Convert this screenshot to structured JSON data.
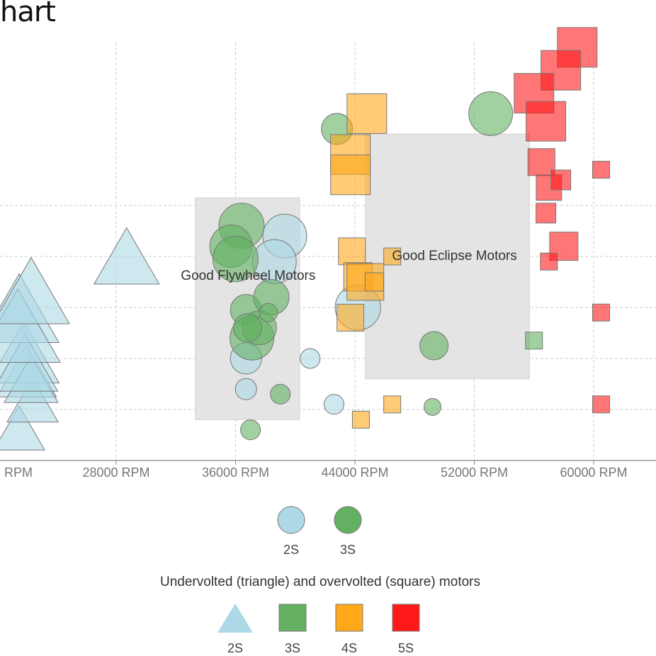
{
  "page": {
    "title": "hart"
  },
  "colors": {
    "2S": "#add8e6",
    "3S": "#63b063",
    "4S": "#ffa91a",
    "5S": "#ff1a1a",
    "zone": "#e4e4e4",
    "stroke": "#777777"
  },
  "chart_data": {
    "type": "scatter",
    "title": "",
    "xlabel": "",
    "ylabel": "",
    "x_unit": "RPM",
    "xlim": [
      20500,
      64000
    ],
    "ylim": [
      0,
      9
    ],
    "x_ticks": [
      "RPM",
      "28000 RPM",
      "36000 RPM",
      "44000 RPM",
      "52000 RPM",
      "60000 RPM"
    ],
    "x_tick_values": [
      20000,
      28000,
      36000,
      44000,
      52000,
      60000
    ],
    "y_gridlines": [
      1,
      2,
      3,
      4,
      5
    ],
    "grid": true,
    "zones": [
      {
        "label": "Good Flywheel Motors",
        "x0": 33300,
        "x1": 40300,
        "y0": 0.8,
        "y1": 5.15
      },
      {
        "label": "Good Eclipse Motors",
        "x0": 44700,
        "x1": 55700,
        "y0": 1.6,
        "y1": 6.4
      }
    ],
    "legend_cells": {
      "items": [
        {
          "label": "2S",
          "color": "2S"
        },
        {
          "label": "3S",
          "color": "3S"
        }
      ]
    },
    "legend_shapes": {
      "title": "Undervolted (triangle) and overvolted (square) motors",
      "items": [
        {
          "label": "2S",
          "shape": "triangle",
          "color": "2S"
        },
        {
          "label": "3S",
          "shape": "square",
          "color": "3S"
        },
        {
          "label": "4S",
          "shape": "square",
          "color": "4S"
        },
        {
          "label": "5S",
          "shape": "square",
          "color": "5S"
        }
      ]
    },
    "series": [
      {
        "shape": "triangle",
        "color": "2S",
        "points": [
          [
            21500,
            0.55,
            36
          ],
          [
            22400,
            1.1,
            36
          ],
          [
            22000,
            1.65,
            42
          ],
          [
            21800,
            2.0,
            50
          ],
          [
            22300,
            1.5,
            38
          ],
          [
            21900,
            1.8,
            46
          ],
          [
            21500,
            2.85,
            56
          ],
          [
            21400,
            2.5,
            60
          ],
          [
            22300,
            3.2,
            54
          ],
          [
            28700,
            3.9,
            46
          ]
        ]
      },
      {
        "shape": "circle",
        "color": "2S",
        "points": [
          [
            39300,
            4.4,
            31
          ],
          [
            38600,
            3.9,
            31
          ],
          [
            36700,
            2.0,
            22
          ],
          [
            36700,
            1.4,
            15
          ],
          [
            41000,
            2.0,
            14
          ],
          [
            44200,
            3.0,
            32
          ],
          [
            42600,
            1.1,
            14
          ]
        ]
      },
      {
        "shape": "circle",
        "color": "3S",
        "points": [
          [
            36400,
            4.6,
            32
          ],
          [
            35700,
            4.2,
            30
          ],
          [
            36000,
            3.95,
            32
          ],
          [
            36700,
            2.95,
            22
          ],
          [
            37100,
            2.4,
            31
          ],
          [
            37600,
            2.6,
            24
          ],
          [
            38400,
            3.2,
            25
          ],
          [
            38200,
            2.9,
            13
          ],
          [
            36800,
            2.6,
            20
          ],
          [
            39000,
            1.3,
            14
          ],
          [
            37000,
            0.6,
            14
          ],
          [
            42800,
            6.5,
            22
          ],
          [
            53100,
            6.8,
            31
          ],
          [
            49300,
            2.25,
            20
          ],
          [
            49200,
            1.05,
            12
          ]
        ]
      },
      {
        "shape": "square",
        "color": "3S",
        "points": [
          [
            56000,
            2.35,
            12
          ]
        ]
      },
      {
        "shape": "square",
        "color": "4S",
        "points": [
          [
            44800,
            6.8,
            28
          ],
          [
            43700,
            6.0,
            28
          ],
          [
            43700,
            5.6,
            28
          ],
          [
            43800,
            4.1,
            19
          ],
          [
            44200,
            3.6,
            20
          ],
          [
            44700,
            3.5,
            26
          ],
          [
            45300,
            3.5,
            13
          ],
          [
            46500,
            4.0,
            12
          ],
          [
            43700,
            2.8,
            19
          ],
          [
            46500,
            1.1,
            12
          ],
          [
            44400,
            0.8,
            12
          ]
        ]
      },
      {
        "shape": "square",
        "color": "5S",
        "points": [
          [
            58900,
            8.1,
            28
          ],
          [
            57800,
            7.65,
            28
          ],
          [
            56000,
            7.2,
            28
          ],
          [
            56800,
            6.65,
            28
          ],
          [
            56500,
            5.85,
            19
          ],
          [
            57000,
            5.35,
            18
          ],
          [
            57800,
            5.5,
            14
          ],
          [
            56800,
            4.85,
            14
          ],
          [
            58000,
            4.2,
            20
          ],
          [
            60500,
            5.7,
            12
          ],
          [
            60500,
            2.9,
            12
          ],
          [
            60500,
            1.1,
            12
          ],
          [
            57000,
            3.9,
            12
          ]
        ]
      }
    ]
  }
}
